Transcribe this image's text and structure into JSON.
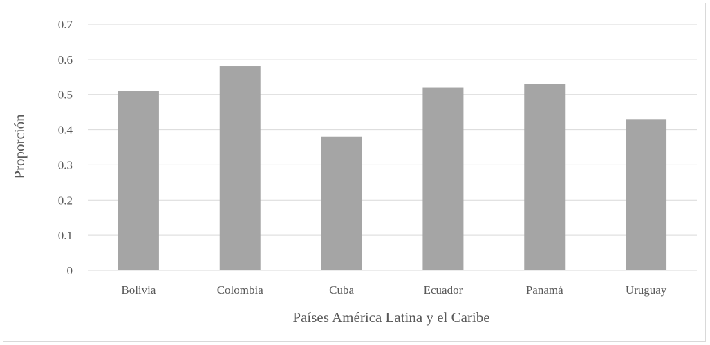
{
  "chart_data": {
    "type": "bar",
    "title": "",
    "xlabel": "Países América Latina y el Caribe",
    "ylabel": "Proporción",
    "categories": [
      "Bolivia",
      "Colombia",
      "Cuba",
      "Ecuador",
      "Panamá",
      "Uruguay"
    ],
    "values": [
      0.51,
      0.58,
      0.38,
      0.52,
      0.53,
      0.43
    ],
    "ylim": [
      0,
      0.7
    ],
    "yticks": [
      "0",
      "0.1",
      "0.2",
      "0.3",
      "0.4",
      "0.5",
      "0.6",
      "0.7"
    ],
    "grid": true,
    "legend": "none",
    "bar_color": "#a5a5a5",
    "grid_color": "#d9d9d9"
  }
}
